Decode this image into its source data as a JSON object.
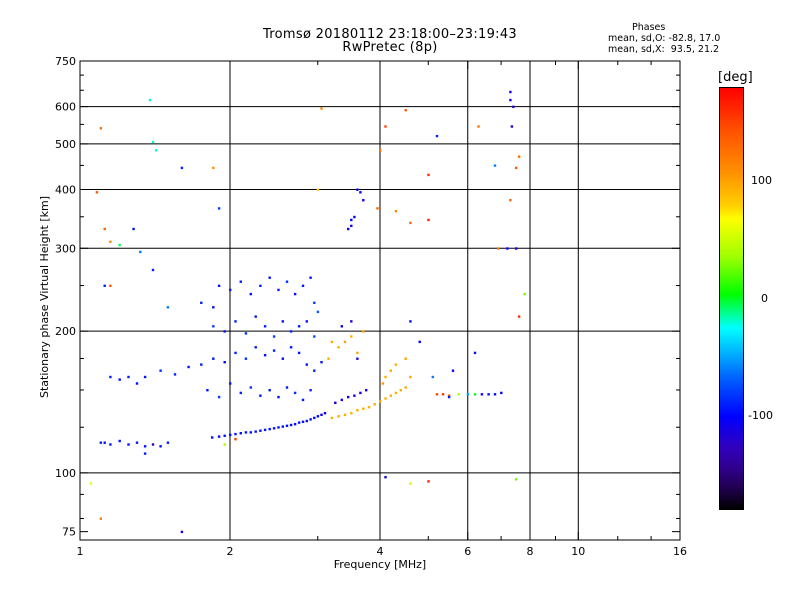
{
  "chart_data": {
    "type": "scatter",
    "title": "Tromsø 20180112 23:18:00–23:19:43",
    "subtitle": "RwPretec (8p)",
    "xlabel": "Frequency [MHz]",
    "ylabel": "Stationary phase Virtual Height [km]",
    "x_scale": "log",
    "y_scale": "log",
    "xlim": [
      1,
      16
    ],
    "ylim": [
      72,
      750
    ],
    "x_ticks": [
      1,
      2,
      4,
      6,
      8,
      10,
      16
    ],
    "x_tick_labels": [
      "1",
      "2",
      "4",
      "6",
      "8",
      "10",
      "16"
    ],
    "y_ticks": [
      75,
      100,
      200,
      300,
      400,
      500,
      600,
      750
    ],
    "y_tick_labels": [
      "75",
      "100",
      "200",
      "300",
      "400",
      "500",
      "600",
      "750"
    ],
    "x_minor_ticks": [
      3,
      5,
      7,
      9,
      12,
      14
    ],
    "y_minor_ticks": [
      80,
      90,
      125,
      150,
      175,
      250,
      350,
      450,
      550,
      650,
      700
    ],
    "grid": true,
    "phases": {
      "title": "Phases",
      "o_mode": "mean, sd,O: -82.8, 17.0",
      "x_mode": "mean, sd,X:  93.5, 21.2"
    },
    "colorbar": {
      "label": "[deg]",
      "ticks": [
        "100",
        "0",
        "-100"
      ],
      "tick_values": [
        100,
        0,
        -100
      ],
      "range": [
        -180,
        180
      ]
    },
    "series": [
      {
        "points": [
          [
            1.84,
            119,
            -95
          ],
          [
            1.9,
            119.5,
            -98
          ],
          [
            1.95,
            120,
            -95
          ],
          [
            2.0,
            120.5,
            -97
          ],
          [
            2.05,
            121,
            -95
          ],
          [
            2.1,
            121.5,
            -96
          ],
          [
            2.15,
            122,
            -94
          ],
          [
            2.2,
            122,
            -95
          ],
          [
            2.25,
            122.5,
            -96
          ],
          [
            2.3,
            123,
            -95
          ],
          [
            2.35,
            123.5,
            -94
          ],
          [
            2.4,
            124,
            -95
          ],
          [
            2.45,
            124.5,
            -96
          ],
          [
            2.5,
            125,
            -95
          ],
          [
            2.55,
            125.5,
            -94
          ],
          [
            2.6,
            126,
            -95
          ],
          [
            2.65,
            126.5,
            -96
          ],
          [
            2.7,
            127,
            -95
          ],
          [
            2.75,
            128,
            -94
          ],
          [
            2.8,
            128.5,
            -95
          ],
          [
            2.85,
            129,
            -96
          ],
          [
            2.9,
            130,
            -95
          ],
          [
            2.95,
            131,
            -97
          ],
          [
            3.0,
            132,
            -100
          ],
          [
            3.05,
            133,
            -105
          ],
          [
            3.1,
            134,
            -110
          ],
          [
            3.2,
            131,
            95
          ],
          [
            3.3,
            132,
            98
          ],
          [
            3.4,
            133,
            95
          ],
          [
            3.5,
            134,
            92
          ],
          [
            3.6,
            136,
            96
          ],
          [
            3.7,
            137,
            95
          ],
          [
            3.8,
            138,
            93
          ],
          [
            3.9,
            140,
            95
          ],
          [
            4.0,
            142,
            96
          ],
          [
            4.1,
            144,
            94
          ],
          [
            4.2,
            146,
            95
          ],
          [
            4.3,
            148,
            95
          ],
          [
            4.4,
            150,
            94
          ],
          [
            4.5,
            152,
            96
          ],
          [
            3.25,
            141,
            -110
          ],
          [
            3.35,
            143,
            -112
          ],
          [
            3.45,
            145,
            -108
          ],
          [
            3.55,
            146,
            -115
          ],
          [
            3.65,
            148,
            -110
          ],
          [
            3.75,
            150,
            -112
          ],
          [
            5.2,
            147,
            150
          ],
          [
            5.35,
            147,
            155
          ],
          [
            5.5,
            146,
            145
          ],
          [
            5.75,
            147,
            40
          ],
          [
            6.0,
            147,
            -50
          ],
          [
            6.2,
            147,
            5
          ],
          [
            6.4,
            147,
            -120
          ],
          [
            6.6,
            147,
            -95
          ],
          [
            6.8,
            147,
            -98
          ],
          [
            7.0,
            148,
            -100
          ],
          [
            1.1,
            116,
            -90
          ],
          [
            1.12,
            116,
            -95
          ],
          [
            1.15,
            115,
            -92
          ],
          [
            1.2,
            117,
            -94
          ],
          [
            1.25,
            115,
            -96
          ],
          [
            1.3,
            116,
            -92
          ],
          [
            1.35,
            114,
            -95
          ],
          [
            1.4,
            115,
            -130
          ],
          [
            1.45,
            114,
            -95
          ],
          [
            1.5,
            116,
            -92
          ],
          [
            1.15,
            160,
            -90
          ],
          [
            1.2,
            158,
            -95
          ],
          [
            1.25,
            160,
            -92
          ],
          [
            1.3,
            155,
            -98
          ],
          [
            1.35,
            160,
            -95
          ],
          [
            1.45,
            165,
            -85
          ],
          [
            1.55,
            162,
            -90
          ],
          [
            1.65,
            168,
            -95
          ],
          [
            1.75,
            170,
            -92
          ],
          [
            1.85,
            175,
            -95
          ],
          [
            1.95,
            172,
            -98
          ],
          [
            2.05,
            180,
            -90
          ],
          [
            2.15,
            175,
            -85
          ],
          [
            2.25,
            185,
            -92
          ],
          [
            2.35,
            178,
            -95
          ],
          [
            2.45,
            182,
            -90
          ],
          [
            2.55,
            175,
            -95
          ],
          [
            2.65,
            185,
            -92
          ],
          [
            2.75,
            180,
            -94
          ],
          [
            2.85,
            170,
            -95
          ],
          [
            2.95,
            165,
            -90
          ],
          [
            3.05,
            172,
            -92
          ],
          [
            1.8,
            150,
            -95
          ],
          [
            1.9,
            145,
            -80
          ],
          [
            2.0,
            155,
            -95
          ],
          [
            2.1,
            148,
            -90
          ],
          [
            2.2,
            152,
            -85
          ],
          [
            2.3,
            146,
            -95
          ],
          [
            2.4,
            150,
            -90
          ],
          [
            2.5,
            145,
            -95
          ],
          [
            2.6,
            152,
            -92
          ],
          [
            2.7,
            148,
            -85
          ],
          [
            2.8,
            143,
            -95
          ],
          [
            2.9,
            150,
            -90
          ],
          [
            1.85,
            205,
            -80
          ],
          [
            1.95,
            200,
            -95
          ],
          [
            2.05,
            210,
            -90
          ],
          [
            2.15,
            198,
            -85
          ],
          [
            2.25,
            215,
            -95
          ],
          [
            2.35,
            205,
            -90
          ],
          [
            2.45,
            195,
            -80
          ],
          [
            2.55,
            210,
            -95
          ],
          [
            2.65,
            200,
            -90
          ],
          [
            2.75,
            205,
            -92
          ],
          [
            2.85,
            210,
            -95
          ],
          [
            2.95,
            195,
            -75
          ],
          [
            1.9,
            250,
            -95
          ],
          [
            2.0,
            245,
            -90
          ],
          [
            2.1,
            255,
            -92
          ],
          [
            2.2,
            240,
            -95
          ],
          [
            2.3,
            250,
            -90
          ],
          [
            2.4,
            260,
            -95
          ],
          [
            2.5,
            245,
            -90
          ],
          [
            2.6,
            255,
            -85
          ],
          [
            2.7,
            240,
            -95
          ],
          [
            2.8,
            250,
            -92
          ],
          [
            2.9,
            260,
            -95
          ],
          [
            1.75,
            230,
            -90
          ],
          [
            1.85,
            225,
            -95
          ],
          [
            2.95,
            230,
            -80
          ],
          [
            3.0,
            220,
            -70
          ],
          [
            3.3,
            185,
            95
          ],
          [
            3.4,
            190,
            100
          ],
          [
            3.5,
            195,
            95
          ],
          [
            3.6,
            180,
            98
          ],
          [
            3.7,
            200,
            100
          ],
          [
            3.15,
            175,
            95
          ],
          [
            3.2,
            190,
            98
          ],
          [
            3.35,
            205,
            -110
          ],
          [
            3.5,
            210,
            -120
          ],
          [
            3.6,
            175,
            -115
          ],
          [
            4.1,
            160,
            95
          ],
          [
            4.2,
            165,
            98
          ],
          [
            4.3,
            170,
            95
          ],
          [
            4.5,
            175,
            100
          ],
          [
            4.6,
            160,
            100
          ],
          [
            4.05,
            155,
            105
          ],
          [
            3.5,
            345,
            -100
          ],
          [
            3.5,
            335,
            -110
          ],
          [
            3.55,
            350,
            -105
          ],
          [
            3.45,
            330,
            -100
          ],
          [
            3.6,
            400,
            -100
          ],
          [
            3.65,
            395,
            -110
          ],
          [
            3.7,
            380,
            -105
          ],
          [
            1.38,
            620,
            -20
          ],
          [
            1.4,
            505,
            -20
          ],
          [
            1.42,
            485,
            -20
          ],
          [
            1.6,
            445,
            -90
          ],
          [
            1.85,
            445,
            110
          ],
          [
            1.9,
            365,
            -80
          ],
          [
            1.1,
            540,
            125
          ],
          [
            1.08,
            395,
            140
          ],
          [
            1.12,
            330,
            135
          ],
          [
            1.15,
            310,
            110
          ],
          [
            1.2,
            305,
            -5
          ],
          [
            1.12,
            250,
            -90
          ],
          [
            1.15,
            250,
            140
          ],
          [
            1.28,
            330,
            -95
          ],
          [
            1.32,
            295,
            -60
          ],
          [
            1.4,
            270,
            -90
          ],
          [
            1.5,
            225,
            -60
          ],
          [
            1.05,
            95,
            60
          ],
          [
            1.1,
            80,
            120
          ],
          [
            1.35,
            110,
            -90
          ],
          [
            1.6,
            75,
            -110
          ],
          [
            1.95,
            115,
            40
          ],
          [
            2.05,
            118,
            150
          ],
          [
            3.0,
            400,
            80
          ],
          [
            3.05,
            595,
            110
          ],
          [
            3.95,
            365,
            130
          ],
          [
            4.0,
            485,
            125
          ],
          [
            4.1,
            545,
            150
          ],
          [
            4.3,
            360,
            110
          ],
          [
            4.5,
            590,
            140
          ],
          [
            4.6,
            340,
            130
          ],
          [
            5.0,
            430,
            160
          ],
          [
            5.0,
            345,
            165
          ],
          [
            5.2,
            520,
            -90
          ],
          [
            4.1,
            98,
            -110
          ],
          [
            4.6,
            95,
            50
          ],
          [
            5.0,
            96,
            165
          ],
          [
            6.3,
            545,
            125
          ],
          [
            6.9,
            300,
            125
          ],
          [
            7.3,
            380,
            130
          ],
          [
            7.3,
            645,
            -110
          ],
          [
            7.3,
            620,
            -110
          ],
          [
            7.35,
            545,
            -110
          ],
          [
            7.4,
            600,
            -120
          ],
          [
            7.6,
            470,
            130
          ],
          [
            7.5,
            445,
            140
          ],
          [
            7.5,
            300,
            -110
          ],
          [
            7.6,
            215,
            160
          ],
          [
            7.8,
            240,
            25
          ],
          [
            7.5,
            97,
            25
          ],
          [
            6.8,
            450,
            -60
          ],
          [
            7.2,
            300,
            -100
          ],
          [
            6.2,
            180,
            -95
          ],
          [
            5.6,
            165,
            -100
          ],
          [
            5.1,
            160,
            -60
          ],
          [
            5.5,
            145,
            -90
          ],
          [
            4.6,
            210,
            -95
          ],
          [
            4.8,
            190,
            -100
          ]
        ]
      }
    ]
  }
}
